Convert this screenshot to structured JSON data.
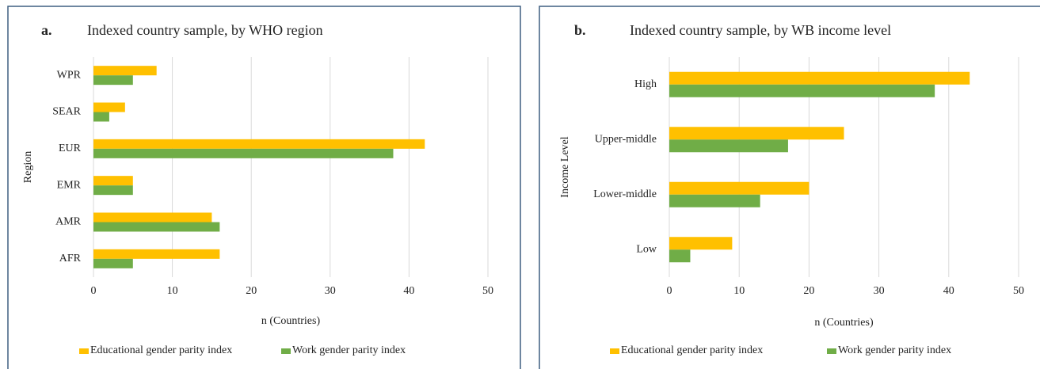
{
  "chart_data": [
    {
      "type": "bar",
      "orientation": "horizontal",
      "panel_label": "a.",
      "title": "Indexed country sample, by WHO region",
      "categories": [
        "WPR",
        "SEAR",
        "EUR",
        "EMR",
        "AMR",
        "AFR"
      ],
      "series": [
        {
          "name": "Educational gender parity index",
          "color": "#ffc000",
          "values": [
            8,
            4,
            42,
            5,
            15,
            16
          ]
        },
        {
          "name": "Work gender parity index",
          "color": "#70ad47",
          "values": [
            5,
            2,
            38,
            5,
            16,
            5
          ]
        }
      ],
      "xlim": [
        0,
        50
      ],
      "xticks": [
        0,
        10,
        20,
        30,
        40,
        50
      ],
      "xlabel": "n (Countries)",
      "ylabel": "Region",
      "grid": true,
      "legend": "bottom"
    },
    {
      "type": "bar",
      "orientation": "horizontal",
      "panel_label": "b.",
      "title": "Indexed country sample, by WB income level",
      "categories": [
        "High",
        "Upper-middle",
        "Lower-middle",
        "Low"
      ],
      "series": [
        {
          "name": "Educational gender parity index",
          "color": "#ffc000",
          "values": [
            43,
            25,
            20,
            9
          ]
        },
        {
          "name": "Work gender parity index",
          "color": "#70ad47",
          "values": [
            38,
            17,
            13,
            3
          ]
        }
      ],
      "xlim": [
        0,
        50
      ],
      "xticks": [
        0,
        10,
        20,
        30,
        40,
        50
      ],
      "xlabel": "n (Countries)",
      "ylabel": "Income Level",
      "grid": true,
      "legend": "bottom"
    }
  ]
}
